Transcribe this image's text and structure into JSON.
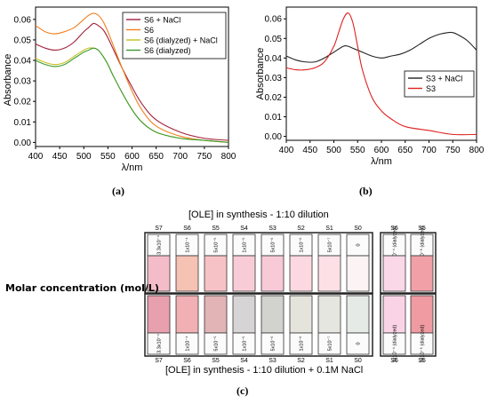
{
  "chart_data": [
    {
      "type": "line",
      "panel": "a",
      "xlabel": "λ/nm",
      "ylabel": "Absorbance",
      "xlim": [
        400,
        800
      ],
      "ylim": [
        -0.002,
        0.066
      ],
      "xticks": [
        400,
        450,
        500,
        550,
        600,
        650,
        700,
        750,
        800
      ],
      "yticks": [
        0.0,
        0.01,
        0.02,
        0.03,
        0.04,
        0.05,
        0.06
      ],
      "legend_position": "top-right",
      "series": [
        {
          "name": "S6 + NaCl",
          "color": "#a0203a",
          "x": [
            400,
            420,
            440,
            460,
            480,
            500,
            510,
            520,
            530,
            540,
            550,
            560,
            580,
            600,
            620,
            650,
            700,
            750,
            800
          ],
          "y": [
            0.048,
            0.046,
            0.045,
            0.046,
            0.049,
            0.054,
            0.056,
            0.058,
            0.057,
            0.055,
            0.051,
            0.046,
            0.036,
            0.027,
            0.019,
            0.011,
            0.005,
            0.002,
            0.001
          ]
        },
        {
          "name": "S6",
          "color": "#f08020",
          "x": [
            400,
            420,
            440,
            460,
            480,
            500,
            510,
            520,
            530,
            540,
            550,
            560,
            580,
            600,
            620,
            650,
            700,
            750,
            800
          ],
          "y": [
            0.057,
            0.054,
            0.053,
            0.054,
            0.056,
            0.06,
            0.062,
            0.063,
            0.062,
            0.059,
            0.054,
            0.048,
            0.036,
            0.025,
            0.016,
            0.008,
            0.003,
            0.001,
            0.0
          ]
        },
        {
          "name": "S6 (dialyzed) + NaCl",
          "color": "#c8c020",
          "x": [
            400,
            420,
            440,
            460,
            480,
            500,
            510,
            520,
            530,
            540,
            550,
            560,
            580,
            600,
            620,
            650,
            700,
            750,
            800
          ],
          "y": [
            0.041,
            0.039,
            0.038,
            0.039,
            0.042,
            0.045,
            0.046,
            0.046,
            0.045,
            0.042,
            0.038,
            0.033,
            0.024,
            0.016,
            0.01,
            0.005,
            0.002,
            0.001,
            0.0
          ]
        },
        {
          "name": "S6 (dialyzed)",
          "color": "#3a9a30",
          "x": [
            400,
            420,
            440,
            460,
            480,
            500,
            510,
            520,
            530,
            540,
            550,
            560,
            580,
            600,
            620,
            650,
            700,
            750,
            800
          ],
          "y": [
            0.04,
            0.038,
            0.037,
            0.038,
            0.041,
            0.044,
            0.045,
            0.046,
            0.045,
            0.042,
            0.038,
            0.033,
            0.024,
            0.016,
            0.01,
            0.005,
            0.002,
            0.001,
            0.0
          ]
        }
      ]
    },
    {
      "type": "line",
      "panel": "b",
      "xlabel": "λ/nm",
      "ylabel": "Absorbance",
      "xlim": [
        400,
        800
      ],
      "ylim": [
        -0.002,
        0.066
      ],
      "xticks": [
        400,
        450,
        500,
        550,
        600,
        650,
        700,
        750,
        800
      ],
      "yticks": [
        0.0,
        0.01,
        0.02,
        0.03,
        0.04,
        0.05,
        0.06
      ],
      "legend_position": "bottom-right",
      "series": [
        {
          "name": "S3 + NaCl",
          "color": "#222222",
          "x": [
            400,
            420,
            440,
            460,
            480,
            500,
            520,
            530,
            540,
            560,
            580,
            600,
            620,
            640,
            660,
            680,
            700,
            720,
            740,
            750,
            760,
            780,
            800
          ],
          "y": [
            0.041,
            0.039,
            0.038,
            0.038,
            0.04,
            0.043,
            0.046,
            0.046,
            0.045,
            0.043,
            0.041,
            0.04,
            0.041,
            0.042,
            0.044,
            0.047,
            0.05,
            0.052,
            0.053,
            0.053,
            0.052,
            0.049,
            0.044
          ]
        },
        {
          "name": "S3",
          "color": "#e02020",
          "x": [
            400,
            420,
            440,
            460,
            480,
            500,
            510,
            520,
            530,
            540,
            550,
            560,
            580,
            600,
            620,
            650,
            700,
            750,
            800
          ],
          "y": [
            0.035,
            0.034,
            0.034,
            0.035,
            0.038,
            0.046,
            0.053,
            0.06,
            0.063,
            0.058,
            0.046,
            0.034,
            0.02,
            0.013,
            0.009,
            0.005,
            0.003,
            0.001,
            0.001
          ]
        }
      ]
    }
  ],
  "captions": {
    "a": "(a)",
    "b": "(b)",
    "c": "(c)"
  },
  "vials": {
    "top_title": "[OLE] in synthesis - 1:10 dilution",
    "bottom_title": "[OLE] in synthesis - 1:10 dilution + 0.1M NaCl",
    "side_label": "Molar concentration (mol/L)",
    "items": [
      {
        "sample": "S7",
        "conc": "3.3x10⁻⁴",
        "top_color": "#f4bcc8",
        "bottom_color": "#e8a0ae"
      },
      {
        "sample": "S6",
        "conc": "1x10⁻⁴",
        "top_color": "#f6c2b4",
        "bottom_color": "#f0b0b4"
      },
      {
        "sample": "S5",
        "conc": "5x10⁻⁵",
        "top_color": "#f7c2c6",
        "bottom_color": "#e2b4b6"
      },
      {
        "sample": "S4",
        "conc": "1x10⁻⁵",
        "top_color": "#f8ccd6",
        "bottom_color": "#d6d4d4"
      },
      {
        "sample": "S3",
        "conc": "5x10⁻⁶",
        "top_color": "#f8cad8",
        "bottom_color": "#d2d2ce"
      },
      {
        "sample": "S2",
        "conc": "1x10⁻⁶",
        "top_color": "#fcd8e0",
        "bottom_color": "#e4e4dc"
      },
      {
        "sample": "S1",
        "conc": "5x10⁻⁷",
        "top_color": "#fde0e6",
        "bottom_color": "#e6e6e0"
      },
      {
        "sample": "S0",
        "conc": "0",
        "top_color": "#fbf3f4",
        "bottom_color": "#e6eae6"
      }
    ],
    "dialyzed": [
      {
        "sample": "S6",
        "conc": "1x10⁻⁴ (dialyzed)",
        "top_color": "#fbd8e8",
        "bottom_color": "#fad4e6"
      },
      {
        "sample": "S5",
        "conc": "5x10⁻⁵ (dialyzed)",
        "top_color": "#f2a0a8",
        "bottom_color": "#f09aa2"
      }
    ]
  }
}
